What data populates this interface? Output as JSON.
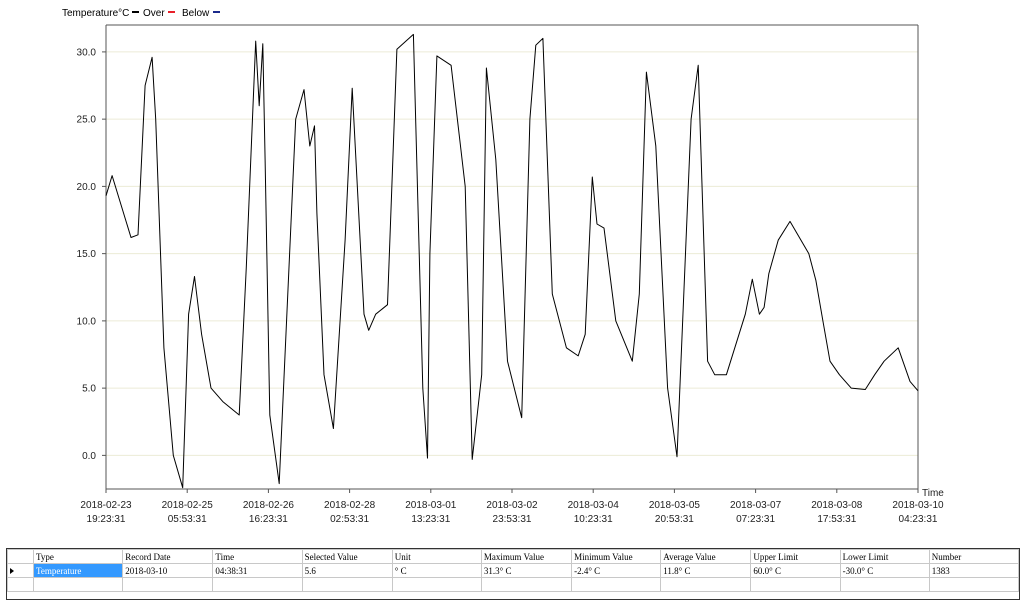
{
  "chart_data": {
    "type": "line",
    "legend": {
      "label": "Temperature°C",
      "entries": [
        {
          "name": "Over",
          "color": "#000000"
        },
        {
          "name": "Below",
          "color": "#e8202a"
        },
        {
          "name": "",
          "color": "#1b2a8c"
        }
      ],
      "extra_label": "Below"
    },
    "xlabel": "Time",
    "ylabel": "",
    "ylim": [
      -2.5,
      32
    ],
    "yticks": [
      "30.0",
      "25.0",
      "20.0",
      "15.0",
      "10.0",
      "5.0",
      "0.0"
    ],
    "ytick_values": [
      30,
      25,
      20,
      15,
      10,
      5,
      0
    ],
    "xlim": [
      "2018-02-23 19:23:31",
      "2018-03-10 04:23:31"
    ],
    "xticks": [
      {
        "date": "2018-02-23",
        "time": "19:23:31"
      },
      {
        "date": "2018-02-25",
        "time": "05:53:31"
      },
      {
        "date": "2018-02-26",
        "time": "16:23:31"
      },
      {
        "date": "2018-02-28",
        "time": "02:53:31"
      },
      {
        "date": "2018-03-01",
        "time": "13:23:31"
      },
      {
        "date": "2018-03-02",
        "time": "23:53:31"
      },
      {
        "date": "2018-03-04",
        "time": "10:23:31"
      },
      {
        "date": "2018-03-05",
        "time": "20:53:31"
      },
      {
        "date": "2018-03-07",
        "time": "07:23:31"
      },
      {
        "date": "2018-03-08",
        "time": "17:53:31"
      },
      {
        "date": "2018-03-10",
        "time": "04:23:31"
      }
    ],
    "grid": true,
    "series": [
      {
        "name": "Temperature",
        "color": "#000000",
        "x": [
          "2018-02-23 19:23",
          "2018-02-23 22:00",
          "2018-02-24 06:00",
          "2018-02-24 09:00",
          "2018-02-24 12:00",
          "2018-02-24 15:00",
          "2018-02-24 16:30",
          "2018-02-24 20:00",
          "2018-02-25 00:00",
          "2018-02-25 04:00",
          "2018-02-25 06:30",
          "2018-02-25 09:00",
          "2018-02-25 12:00",
          "2018-02-25 16:00",
          "2018-02-25 21:00",
          "2018-02-26 04:00",
          "2018-02-26 07:00",
          "2018-02-26 11:00",
          "2018-02-26 12:30",
          "2018-02-26 14:00",
          "2018-02-26 15:00",
          "2018-02-26 17:00",
          "2018-02-26 21:00",
          "2018-02-27 04:00",
          "2018-02-27 07:30",
          "2018-02-27 10:00",
          "2018-02-27 12:00",
          "2018-02-27 13:00",
          "2018-02-27 16:00",
          "2018-02-27 20:00",
          "2018-02-28 01:00",
          "2018-02-28 04:00",
          "2018-02-28 09:00",
          "2018-02-28 11:00",
          "2018-02-28 14:00",
          "2018-02-28 19:00",
          "2018-02-28 23:00",
          "2018-03-01 06:00",
          "2018-03-01 10:00",
          "2018-03-01 12:00",
          "2018-03-01 13:00",
          "2018-03-01 16:00",
          "2018-03-01 22:00",
          "2018-03-02 04:00",
          "2018-03-02 07:00",
          "2018-03-02 11:00",
          "2018-03-02 13:00",
          "2018-03-02 17:00",
          "2018-03-02 22:00",
          "2018-03-03 04:00",
          "2018-03-03 07:30",
          "2018-03-03 10:00",
          "2018-03-03 13:00",
          "2018-03-03 17:00",
          "2018-03-03 23:00",
          "2018-03-04 04:00",
          "2018-03-04 07:00",
          "2018-03-04 10:00",
          "2018-03-04 12:00",
          "2018-03-04 15:00",
          "2018-03-04 20:00",
          "2018-03-05 03:00",
          "2018-03-05 06:00",
          "2018-03-05 09:00",
          "2018-03-05 13:00",
          "2018-03-05 18:00",
          "2018-03-05 22:00",
          "2018-03-06 04:00",
          "2018-03-06 07:00",
          "2018-03-06 11:00",
          "2018-03-06 14:00",
          "2018-03-06 19:00",
          "2018-03-07 03:00",
          "2018-03-07 06:00",
          "2018-03-07 09:00",
          "2018-03-07 11:00",
          "2018-03-07 13:00",
          "2018-03-07 17:00",
          "2018-03-07 22:00",
          "2018-03-08 06:00",
          "2018-03-08 09:00",
          "2018-03-08 12:00",
          "2018-03-08 15:00",
          "2018-03-08 19:00",
          "2018-03-09 00:00",
          "2018-03-09 06:00",
          "2018-03-09 10:00",
          "2018-03-09 14:00",
          "2018-03-09 20:00",
          "2018-03-10 01:00",
          "2018-03-10 04:23"
        ],
        "values": [
          19.3,
          20.8,
          16.2,
          16.4,
          27.5,
          29.6,
          25.0,
          8.0,
          0.0,
          -2.4,
          10.5,
          13.3,
          9.0,
          5.0,
          4.0,
          3.0,
          14.0,
          30.8,
          26.0,
          30.6,
          22.0,
          3.0,
          -2.1,
          25.0,
          27.2,
          23.0,
          24.5,
          18.0,
          6.0,
          2.0,
          16.0,
          27.3,
          10.5,
          9.3,
          10.5,
          11.2,
          30.2,
          31.3,
          5.0,
          -0.2,
          15.0,
          29.7,
          29.0,
          20.0,
          -0.3,
          6.0,
          28.8,
          22.0,
          7.0,
          2.8,
          25.0,
          30.5,
          31.0,
          12.0,
          8.0,
          7.4,
          9.0,
          20.7,
          17.2,
          16.9,
          10.0,
          7.0,
          12.0,
          28.5,
          23.0,
          5.0,
          -0.1,
          25.0,
          29.0,
          7.0,
          6.0,
          6.0,
          10.5,
          13.1,
          10.5,
          11.0,
          13.5,
          16.0,
          17.4,
          15.0,
          13.0,
          10.0,
          7.0,
          6.0,
          5.0,
          4.9,
          6.0,
          7.0,
          8.0,
          5.5,
          4.8
        ]
      }
    ]
  },
  "table": {
    "headers": [
      "Type",
      "Record Date",
      "Time",
      "Selected Value",
      "Unit",
      "Maximum Value",
      "Minimum Value",
      "Average Value",
      "Upper Limit",
      "Lower Limit",
      "Number"
    ],
    "rows": [
      [
        "Temperature",
        "2018-03-10",
        "04:38:31",
        "5.6",
        "° C",
        "31.3° C",
        "-2.4° C",
        "11.8° C",
        "60.0° C",
        "-30.0° C",
        "1383"
      ]
    ]
  }
}
